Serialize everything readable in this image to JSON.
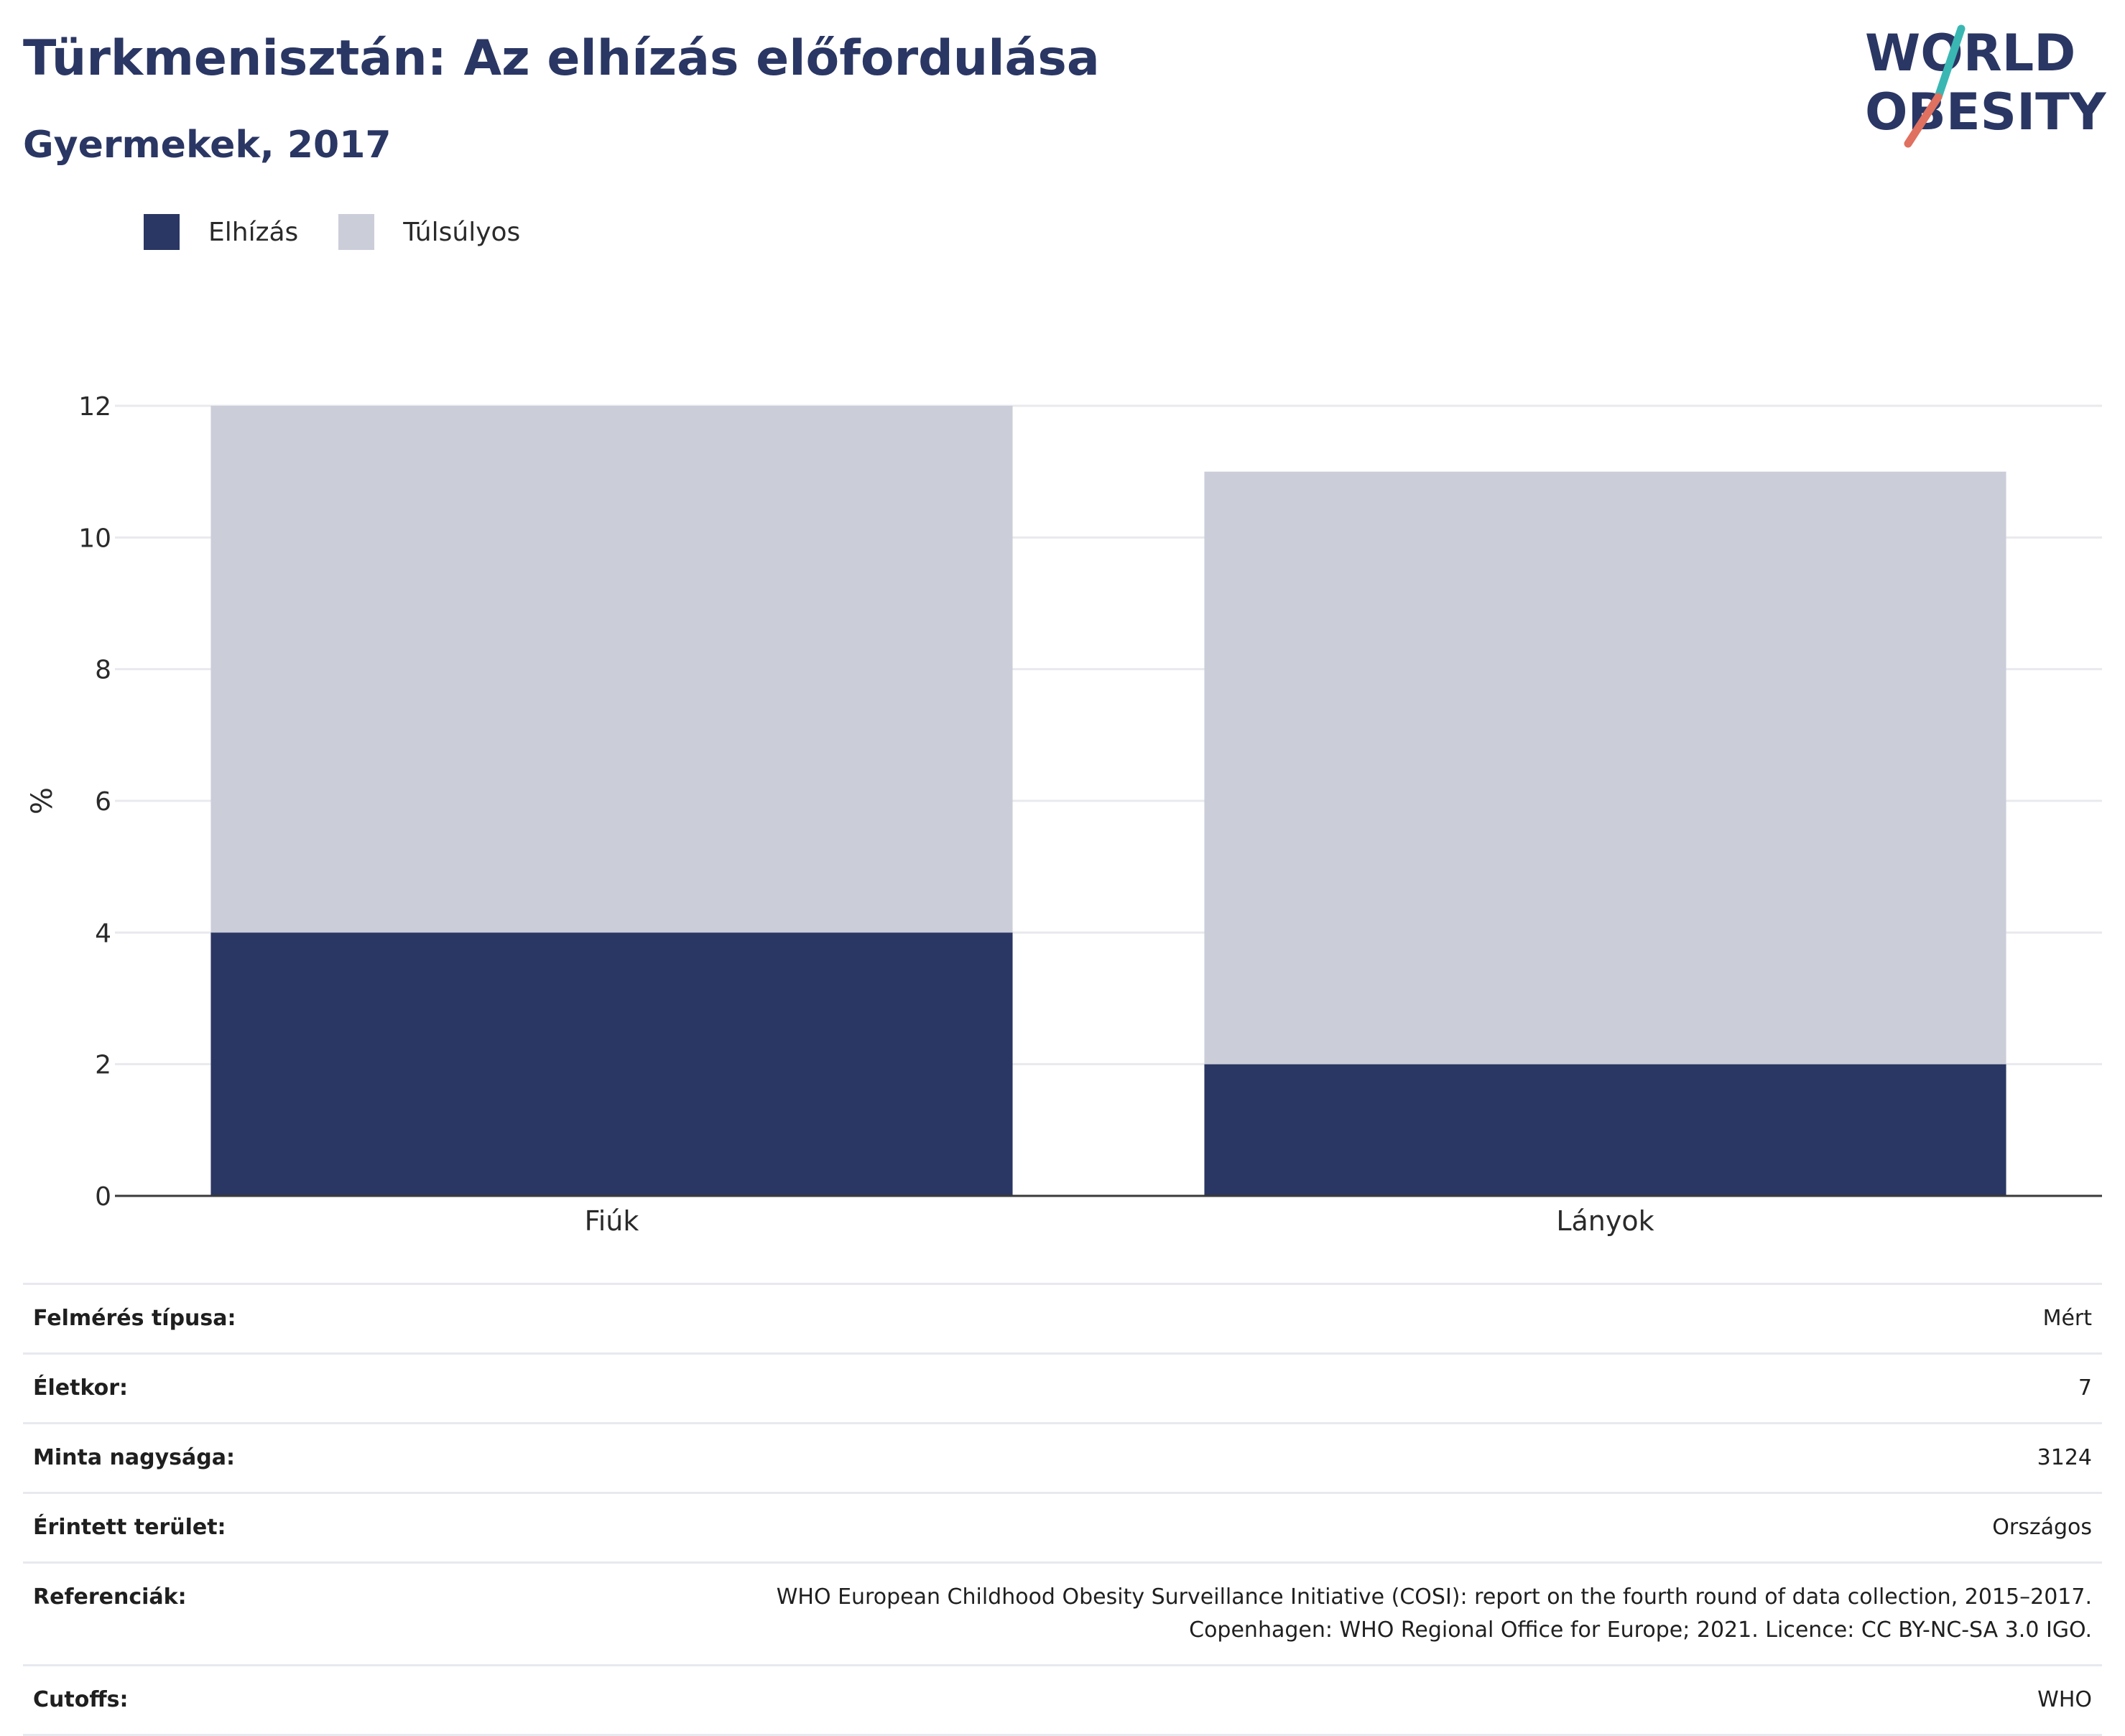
{
  "header": {
    "title": "Türkmenisztán: Az elhízás előfordulása",
    "subtitle": "Gyermekek, 2017"
  },
  "logo": {
    "line1": "WORLD",
    "line2": "OBESITY"
  },
  "colors": {
    "obesity": "#2a3663",
    "overweight": "#cbcdd9",
    "accent_teal": "#3ab7b3",
    "accent_coral": "#e0705f"
  },
  "chart_data": {
    "type": "bar",
    "stacked": true,
    "categories": [
      "Fiúk",
      "Lányok"
    ],
    "series": [
      {
        "name": "Elhízás",
        "values": [
          4,
          2
        ]
      },
      {
        "name": "Túlsúlyos",
        "values": [
          8,
          9
        ]
      }
    ],
    "ylabel": "%",
    "ylim": [
      0,
      12
    ],
    "yticks": [
      "0",
      "2",
      "4",
      "6",
      "8",
      "10",
      "12"
    ],
    "grid": true,
    "legend_position": "top-left"
  },
  "info": [
    {
      "label": "Felmérés típusa:",
      "value": "Mért"
    },
    {
      "label": "Életkor:",
      "value": "7"
    },
    {
      "label": "Minta nagysága:",
      "value": "3124"
    },
    {
      "label": "Érintett terület:",
      "value": "Országos"
    },
    {
      "label": "Referenciák:",
      "value": "WHO European Childhood Obesity Surveillance Initiative (COSI): report on the fourth round of data collection, 2015–2017. Copenhagen: WHO Regional Office for Europe; 2021. Licence: CC BY-NC-SA 3.0 IGO."
    },
    {
      "label": "Cutoffs:",
      "value": "WHO"
    }
  ]
}
